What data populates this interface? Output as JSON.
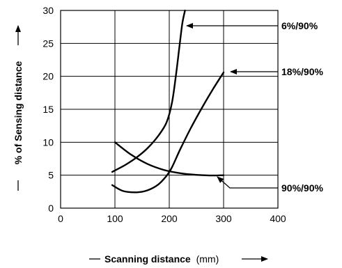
{
  "chart_data": {
    "type": "line",
    "title": "",
    "xlabel": "Scanning distance",
    "xlabel_unit": "(mm)",
    "ylabel": "% of Sensing distance",
    "xlim": [
      0,
      400
    ],
    "ylim": [
      0,
      30
    ],
    "x_ticks": [
      "0",
      "100",
      "200",
      "300",
      "400"
    ],
    "y_ticks": [
      "0",
      "5",
      "10",
      "15",
      "20",
      "25",
      "30"
    ],
    "grid": true,
    "series": [
      {
        "name": "6%/90%",
        "x": [
          95,
          120,
          140,
          160,
          180,
          195,
          205,
          212,
          218,
          224,
          229
        ],
        "y": [
          5.5,
          6.6,
          7.7,
          9.1,
          11.0,
          13.0,
          16.0,
          20.0,
          24.0,
          28.0,
          30.0
        ]
      },
      {
        "name": "18%/90%",
        "x": [
          95,
          115,
          140,
          160,
          180,
          195,
          205,
          220,
          240,
          260,
          280,
          300
        ],
        "y": [
          3.5,
          2.6,
          2.4,
          2.7,
          3.6,
          4.9,
          6.2,
          8.9,
          12.2,
          15.2,
          18.0,
          20.6
        ]
      },
      {
        "name": "90%/90%",
        "x": [
          100,
          130,
          160,
          190,
          220,
          250,
          280,
          300
        ],
        "y": [
          10.0,
          8.1,
          6.7,
          5.8,
          5.3,
          5.05,
          4.95,
          5.0
        ]
      }
    ],
    "annotations": [
      {
        "text": "6%/90%",
        "series": "6%/90%"
      },
      {
        "text": "18%/90%",
        "series": "18%/90%"
      },
      {
        "text": "90%/90%",
        "series": "90%/90%"
      }
    ]
  }
}
